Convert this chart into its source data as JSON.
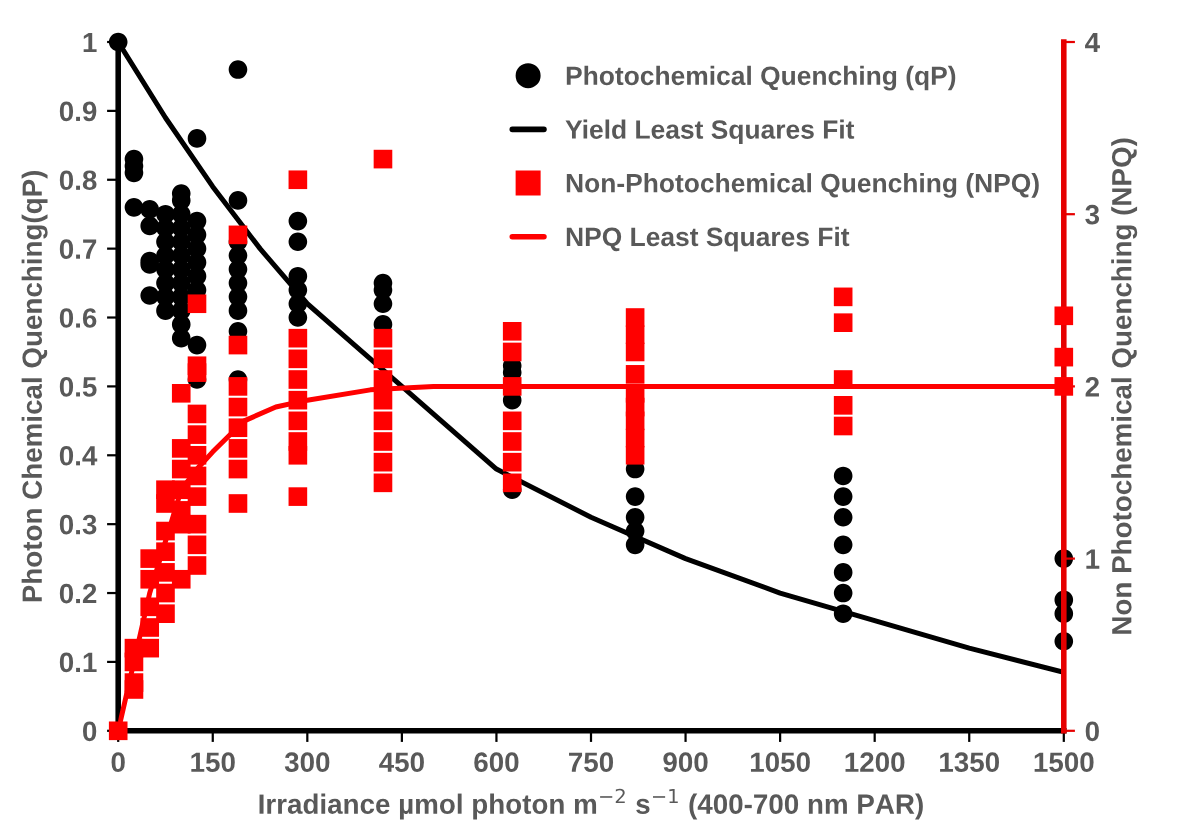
{
  "chart_data": {
    "type": "scatter",
    "xlabel": "Irradiance µmol photon m$^{−2}$ s$^{−1}$ (400-700 nm PAR)",
    "ylabel": "Photon Chemical Quenching(qP)",
    "y2label": "Non Photochemical Quenching (NPQ)",
    "xlim": [
      0,
      1500
    ],
    "xticks": [
      0,
      150,
      300,
      450,
      600,
      750,
      900,
      1050,
      1200,
      1350,
      1500
    ],
    "ylim": [
      0,
      1
    ],
    "yticks": [
      0,
      0.1,
      0.2,
      0.3,
      0.4,
      0.5,
      0.6,
      0.7,
      0.8,
      0.9,
      1
    ],
    "y2lim": [
      0,
      4
    ],
    "y2ticks": [
      0,
      1,
      2,
      3,
      4
    ],
    "grid": false,
    "legend": "top right",
    "series": [
      {
        "name": "Photochemical Quenching (qP)",
        "marker": "circle",
        "color": "#000000",
        "x": [
          0,
          25,
          25,
          25,
          25,
          50,
          50,
          50,
          50,
          50,
          75,
          75,
          75,
          75,
          75,
          75,
          75,
          75,
          100,
          100,
          100,
          100,
          100,
          100,
          100,
          100,
          100,
          100,
          100,
          100,
          125,
          125,
          125,
          125,
          125,
          125,
          125,
          125,
          125,
          190,
          190,
          190,
          190,
          190,
          190,
          190,
          190,
          190,
          190,
          285,
          285,
          285,
          285,
          285,
          285,
          420,
          420,
          420,
          420,
          625,
          625,
          625,
          625,
          820,
          820,
          820,
          820,
          820,
          1150,
          1150,
          1150,
          1150,
          1150,
          1150,
          1150,
          1500,
          1500,
          1500,
          1500
        ],
        "values": [
          1.0,
          0.83,
          0.82,
          0.81,
          0.76,
          0.757,
          0.733,
          0.682,
          0.677,
          0.632,
          0.75,
          0.73,
          0.71,
          0.69,
          0.67,
          0.65,
          0.63,
          0.61,
          0.78,
          0.77,
          0.75,
          0.73,
          0.71,
          0.69,
          0.67,
          0.65,
          0.63,
          0.61,
          0.59,
          0.57,
          0.86,
          0.74,
          0.72,
          0.7,
          0.68,
          0.66,
          0.64,
          0.56,
          0.51,
          0.96,
          0.77,
          0.71,
          0.69,
          0.67,
          0.65,
          0.63,
          0.61,
          0.58,
          0.51,
          0.74,
          0.71,
          0.66,
          0.64,
          0.62,
          0.6,
          0.65,
          0.64,
          0.62,
          0.59,
          0.53,
          0.52,
          0.48,
          0.35,
          0.38,
          0.34,
          0.31,
          0.29,
          0.27,
          0.37,
          0.34,
          0.31,
          0.27,
          0.23,
          0.2,
          0.17,
          0.25,
          0.19,
          0.17,
          0.13
        ]
      },
      {
        "name": "Yield Least Squares Fit",
        "type": "line",
        "marker": "none",
        "line_style": "solid",
        "color": "#000000",
        "x": [
          0,
          75,
          150,
          225,
          300,
          375,
          450,
          600,
          750,
          900,
          1050,
          1200,
          1350,
          1500
        ],
        "values": [
          1.0,
          0.89,
          0.79,
          0.7,
          0.62,
          0.56,
          0.5,
          0.38,
          0.31,
          0.25,
          0.2,
          0.16,
          0.12,
          0.085
        ]
      },
      {
        "name": "Non-Photochemical Quenching (NPQ)",
        "marker": "square",
        "color": "#ff0000",
        "axis": "y2",
        "x": [
          0,
          25,
          25,
          25,
          25,
          50,
          50,
          50,
          50,
          50,
          75,
          75,
          75,
          75,
          75,
          75,
          75,
          100,
          100,
          100,
          100,
          100,
          100,
          100,
          125,
          125,
          125,
          125,
          125,
          125,
          125,
          125,
          125,
          125,
          125,
          190,
          190,
          190,
          190,
          190,
          190,
          190,
          190,
          285,
          285,
          285,
          285,
          285,
          285,
          285,
          285,
          285,
          420,
          420,
          420,
          420,
          420,
          420,
          420,
          420,
          420,
          625,
          625,
          625,
          625,
          625,
          625,
          625,
          820,
          820,
          820,
          820,
          820,
          820,
          820,
          820,
          820,
          1150,
          1150,
          1150,
          1150,
          1150,
          1500,
          1500,
          1500
        ],
        "values": [
          0,
          0.48,
          0.4,
          0.28,
          0.24,
          1.0,
          0.88,
          0.72,
          0.6,
          0.48,
          1.4,
          1.32,
          1.16,
          1.04,
          0.92,
          0.8,
          0.68,
          1.96,
          1.64,
          1.52,
          1.4,
          1.28,
          1.2,
          0.88,
          2.48,
          2.12,
          2.08,
          1.84,
          1.72,
          1.6,
          1.48,
          1.36,
          1.2,
          1.08,
          0.96,
          2.88,
          2.24,
          2.0,
          1.88,
          1.76,
          1.64,
          1.52,
          1.32,
          3.2,
          2.28,
          2.16,
          2.04,
          1.92,
          1.8,
          1.68,
          1.6,
          1.36,
          3.32,
          2.28,
          2.16,
          2.04,
          1.92,
          1.8,
          1.68,
          1.56,
          1.44,
          2.32,
          2.2,
          2.0,
          1.8,
          1.68,
          1.56,
          1.44,
          2.4,
          2.3,
          2.2,
          2.07,
          1.96,
          1.88,
          1.8,
          1.7,
          1.6,
          2.52,
          2.37,
          2.04,
          1.89,
          1.77,
          2.41,
          2.17,
          2.0
        ]
      },
      {
        "name": "NPQ Least Squares Fit",
        "type": "line",
        "marker": "none",
        "line_style": "solid",
        "color": "#ff0000",
        "axis": "y2",
        "x": [
          0,
          50,
          100,
          125,
          150,
          200,
          250,
          300,
          400,
          500,
          1500
        ],
        "values": [
          0,
          0.8,
          1.4,
          1.52,
          1.62,
          1.8,
          1.88,
          1.92,
          1.98,
          2.0,
          2.0
        ]
      }
    ]
  }
}
